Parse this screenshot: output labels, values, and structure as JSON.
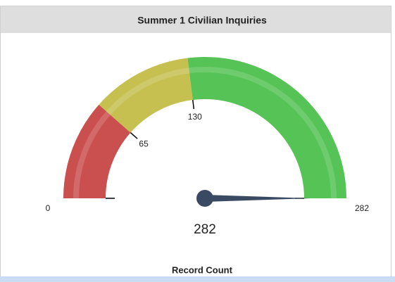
{
  "chart_data": {
    "type": "gauge",
    "title": "Summer 1 Civilian Inquiries",
    "value": 282,
    "ylim": [
      0,
      282
    ],
    "yticks": [
      0,
      65,
      130,
      282
    ],
    "bands": [
      {
        "from": 0,
        "to": 65,
        "color": "#c9504f"
      },
      {
        "from": 65,
        "to": 130,
        "color": "#c6c050"
      },
      {
        "from": 130,
        "to": 282,
        "color": "#55c355"
      }
    ],
    "needle_color": "#3b4a63",
    "axis_label": "Record Count"
  }
}
